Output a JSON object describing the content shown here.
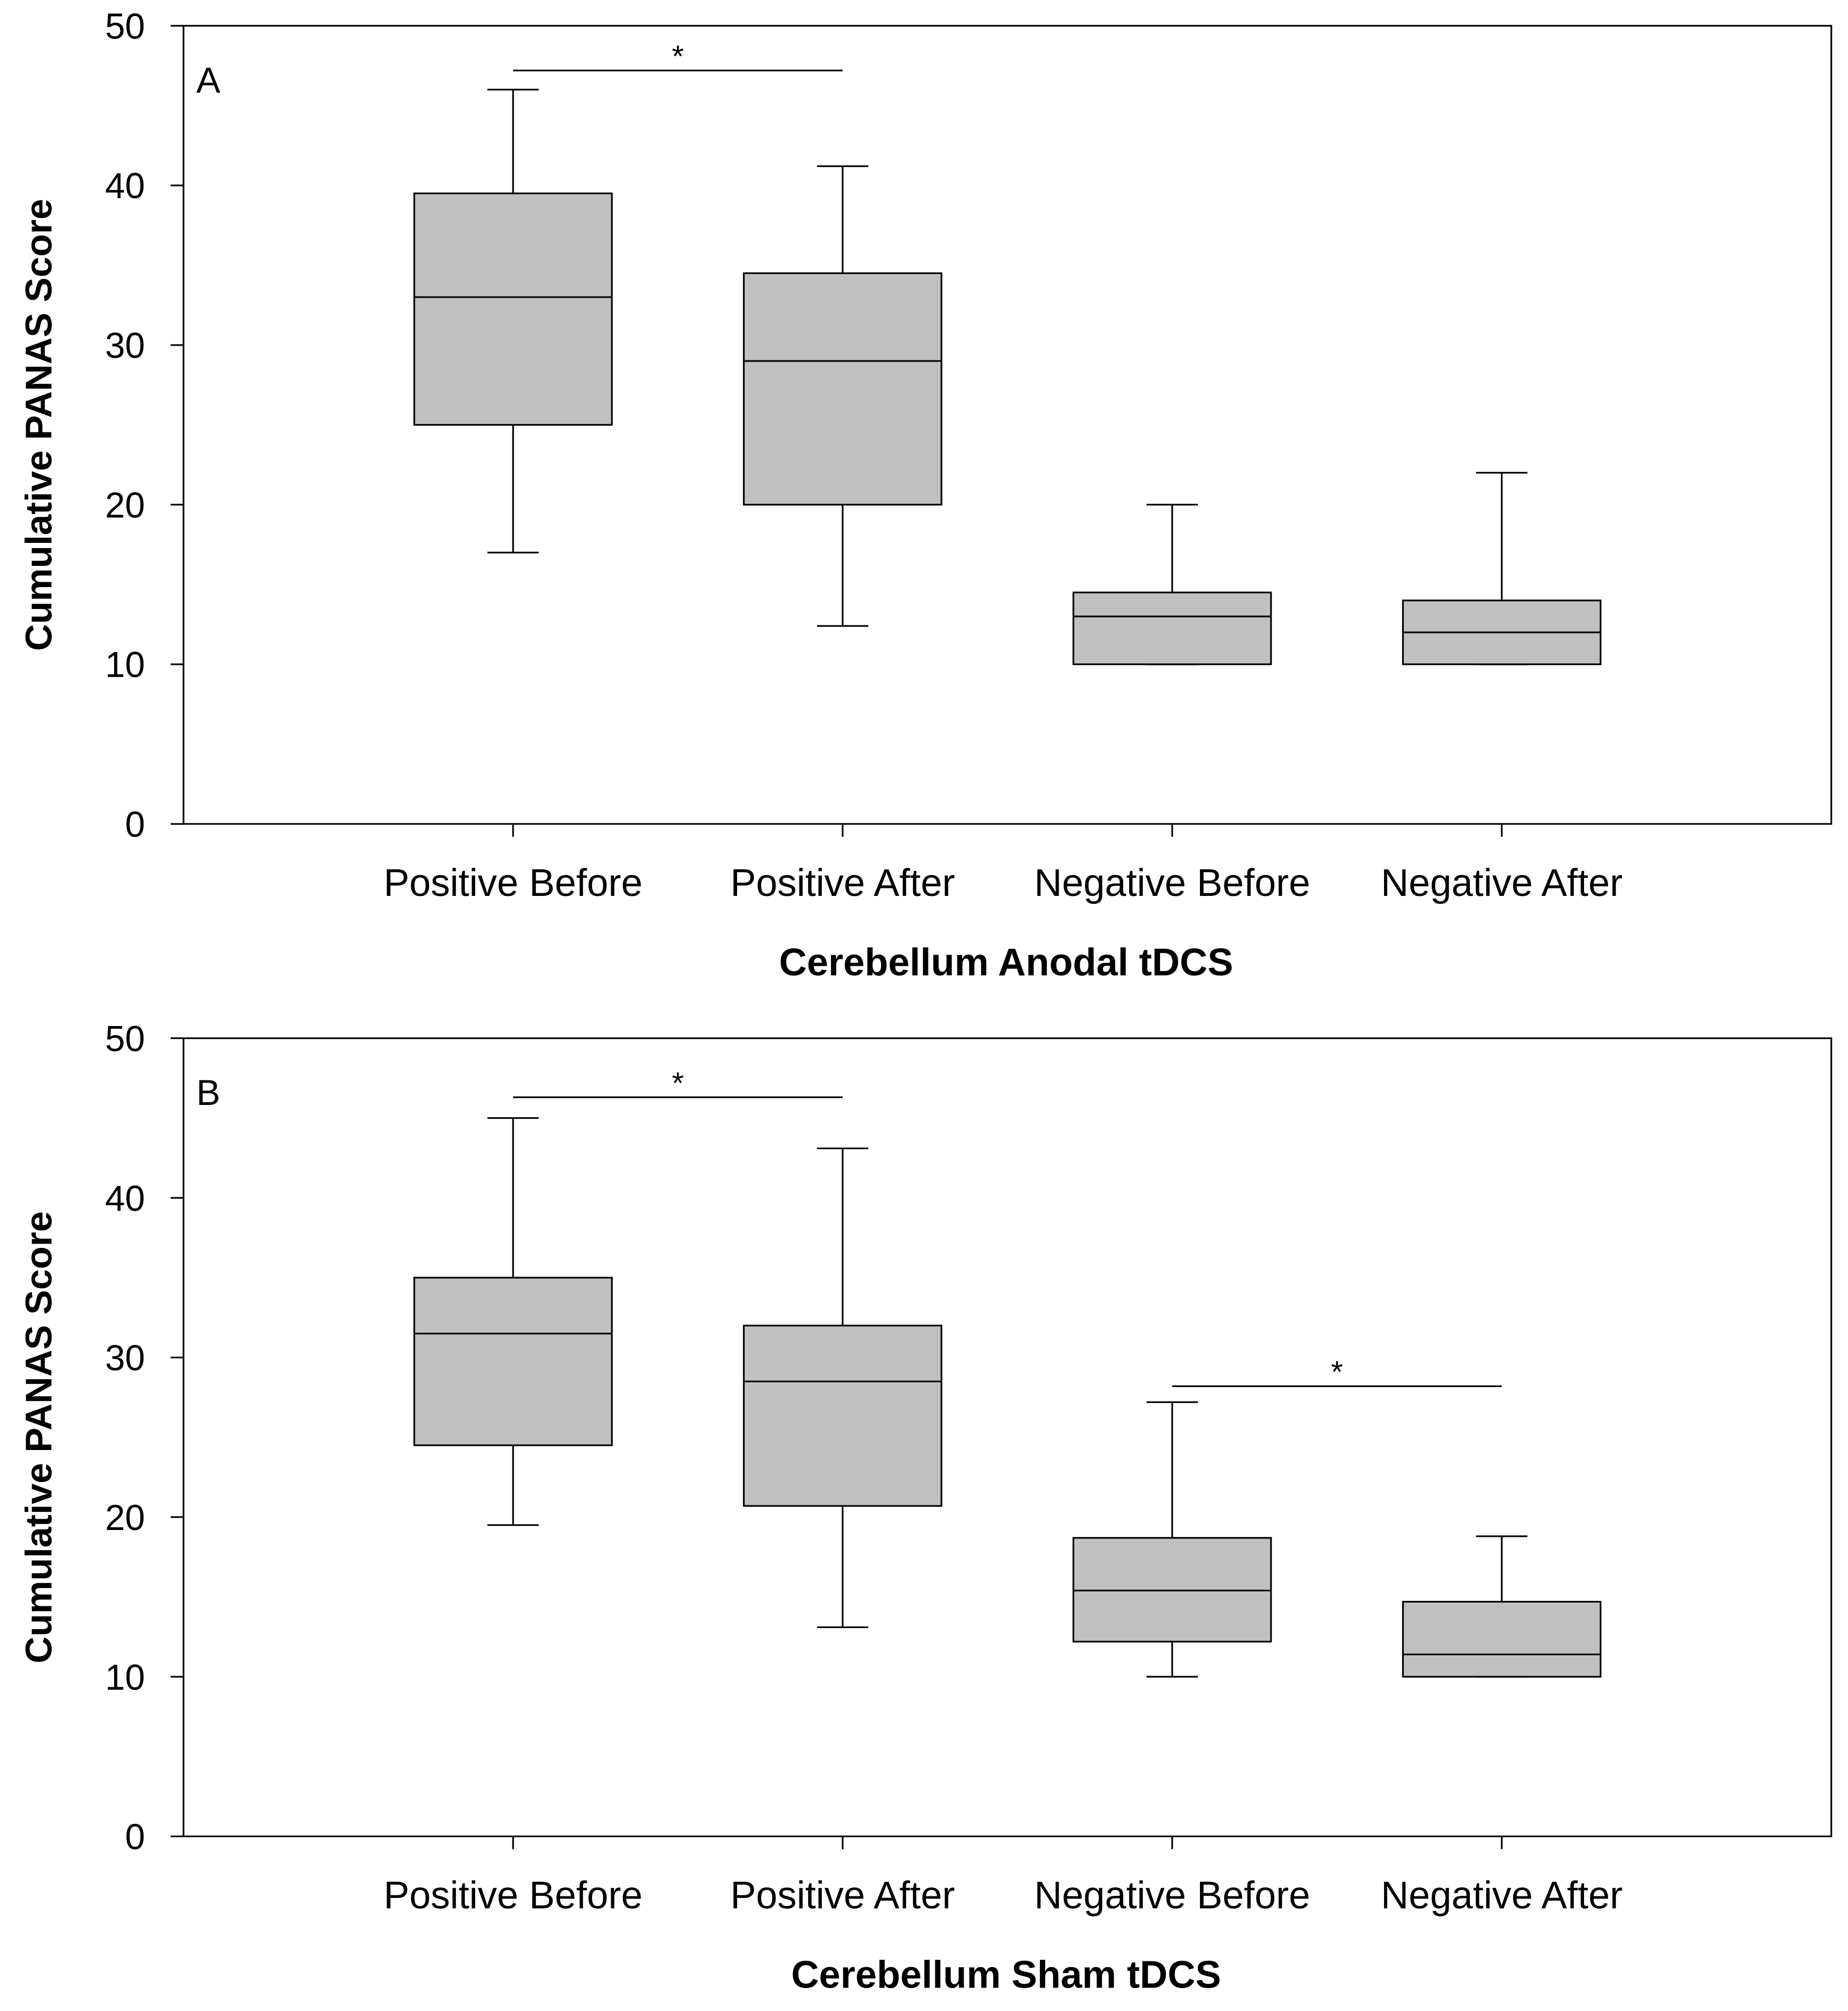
{
  "chart_data": [
    {
      "type": "box",
      "panel_label": "A",
      "x_label": "Cerebellum Anodal tDCS",
      "y_label": "Cumulative PANAS Score",
      "categories": [
        "Positive Before",
        "Positive After",
        "Negative Before",
        "Negative After"
      ],
      "whisker_low": [
        17,
        12.4,
        10,
        10
      ],
      "q1": [
        25,
        20,
        10,
        10
      ],
      "median": [
        33,
        29,
        13,
        12
      ],
      "q3": [
        39.5,
        34.5,
        14.5,
        14
      ],
      "whisker_high": [
        46,
        41.2,
        20,
        22
      ],
      "color": "#c0c0c0",
      "ylim": [
        0,
        50
      ],
      "yticks": [
        0,
        10,
        20,
        30,
        40,
        50
      ],
      "significance": [
        {
          "label": "*",
          "y": 47.2,
          "between": [
            "Positive Before",
            "Positive After"
          ]
        }
      ]
    },
    {
      "type": "box",
      "panel_label": "B",
      "x_label": "Cerebellum Sham tDCS",
      "y_label": "Cumulative PANAS Score",
      "categories": [
        "Positive Before",
        "Positive After",
        "Negative Before",
        "Negative After"
      ],
      "whisker_low": [
        19.5,
        13.1,
        10,
        10
      ],
      "q1": [
        24.5,
        20.7,
        12.2,
        10
      ],
      "median": [
        31.5,
        28.5,
        15.4,
        11.4
      ],
      "q3": [
        35,
        32,
        18.7,
        14.7
      ],
      "whisker_high": [
        45,
        43.1,
        27.2,
        18.8
      ],
      "color": "#c0c0c0",
      "ylim": [
        0,
        50
      ],
      "yticks": [
        0,
        10,
        20,
        30,
        40,
        50
      ],
      "significance": [
        {
          "label": "*",
          "y": 46.3,
          "between": [
            "Positive Before",
            "Positive After"
          ]
        },
        {
          "label": "*",
          "y": 28.2,
          "between": [
            "Negative Before",
            "Negative After"
          ]
        }
      ]
    }
  ]
}
